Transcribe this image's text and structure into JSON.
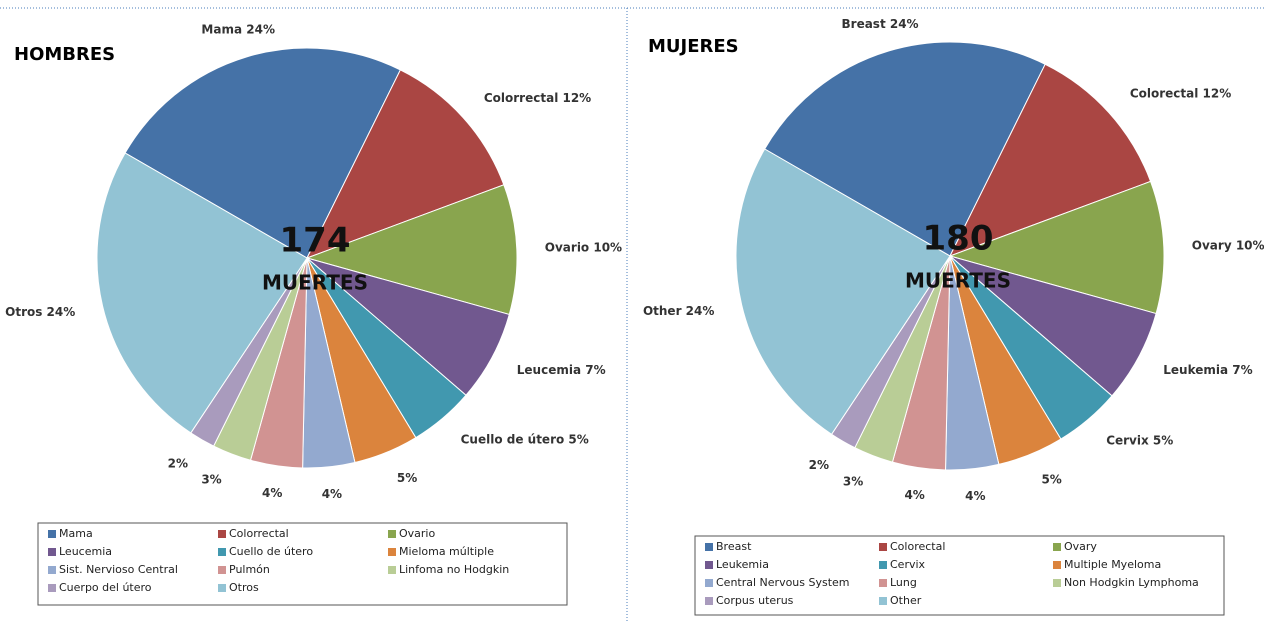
{
  "chart_data": [
    {
      "type": "pie",
      "title": "HOMBRES",
      "total": 174,
      "total_label": "MUERTES",
      "categories": [
        "Mama",
        "Colorrectal",
        "Ovario",
        "Leucemia",
        "Cuello de útero",
        "Mieloma múltiple",
        "Sist. Nervioso Central",
        "Pulmón",
        "Linfoma no Hodgkin",
        "Cuerpo del útero",
        "Otros"
      ],
      "values": [
        24,
        12,
        10,
        7,
        5,
        5,
        4,
        4,
        3,
        2,
        24
      ],
      "value_labels": [
        "Mama 24%",
        "Colorrectal 12%",
        "Ovario 10%",
        "Leucemia 7%",
        "Cuello de útero 5%",
        "5%",
        "4%",
        "4%",
        "3%",
        "2%",
        "Otros 24%"
      ],
      "colors": [
        "#4572a7",
        "#aa4643",
        "#89a54e",
        "#71588f",
        "#4198af",
        "#db843d",
        "#93a9cf",
        "#d19392",
        "#b9cd96",
        "#a99bbd",
        "#92c3d4"
      ],
      "legend": "bottom"
    },
    {
      "type": "pie",
      "title": "MUJERES",
      "total": 180,
      "total_label": "MUERTES",
      "categories": [
        "Breast",
        "Colorectal",
        "Ovary",
        "Leukemia",
        "Cervix",
        "Multiple Myeloma",
        "Central Nervous System",
        "Lung",
        "Non Hodgkin Lymphoma",
        "Corpus uterus",
        "Other"
      ],
      "values": [
        24,
        12,
        10,
        7,
        5,
        5,
        4,
        4,
        3,
        2,
        24
      ],
      "value_labels": [
        "Breast 24%",
        "Colorectal 12%",
        "Ovary 10%",
        "Leukemia 7%",
        "Cervix 5%",
        "5%",
        "4%",
        "4%",
        "3%",
        "2%",
        "Other 24%"
      ],
      "colors": [
        "#4572a7",
        "#aa4643",
        "#89a54e",
        "#71588f",
        "#4198af",
        "#db843d",
        "#93a9cf",
        "#d19392",
        "#b9cd96",
        "#a99bbd",
        "#92c3d4"
      ],
      "legend": "bottom"
    }
  ]
}
